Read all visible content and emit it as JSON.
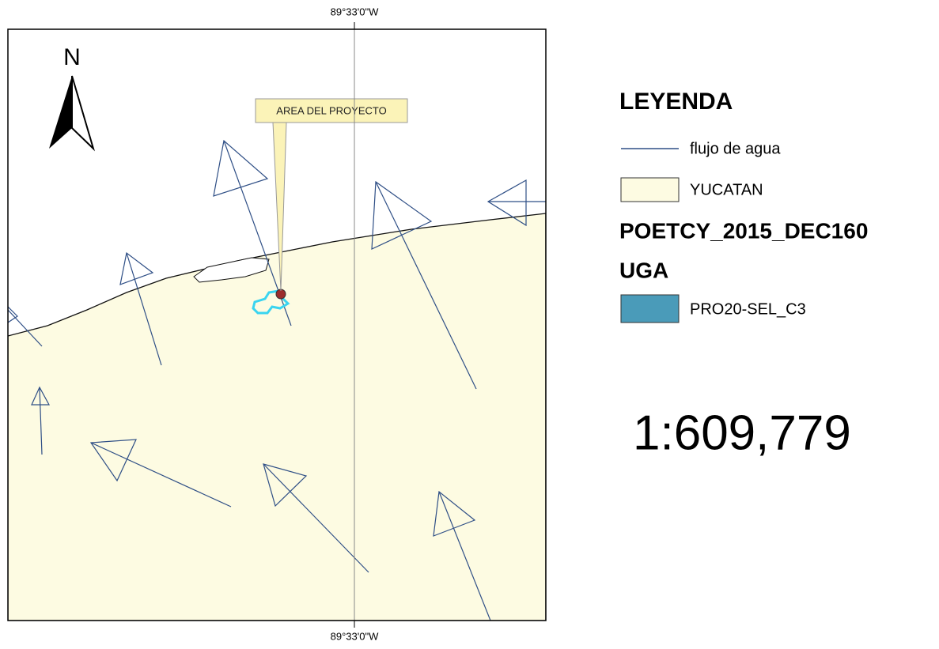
{
  "map": {
    "graticule_top": "89°33'0\"W",
    "graticule_bottom": "89°33'0\"W",
    "north": "N",
    "callout": "AREA DEL PROYECTO"
  },
  "legend": {
    "title": "LEYENDA",
    "items": [
      "flujo de agua",
      "YUCATAN"
    ],
    "layer": "POETCY_2015_DEC160",
    "group": "UGA",
    "group_items": [
      "PRO20-SEL_C3"
    ]
  },
  "scale": "1:609,779"
}
